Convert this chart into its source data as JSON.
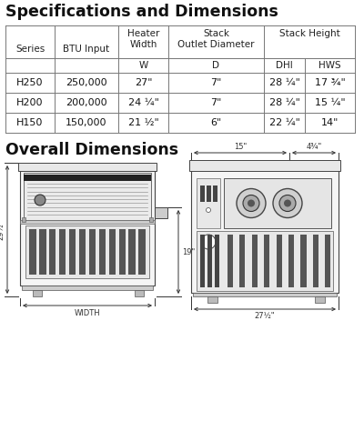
{
  "title1": "Specifications and Dimensions",
  "title2": "Overall Dimensions",
  "bg_color": "#ffffff",
  "table": {
    "rows": [
      [
        "H250",
        "250,000",
        "27\"",
        "7\"",
        "28 ¼\"",
        "17 ¾\""
      ],
      [
        "H200",
        "200,000",
        "24 ¼\"",
        "7\"",
        "28 ¼\"",
        "15 ¼\""
      ],
      [
        "H150",
        "150,000",
        "21 ½\"",
        "6\"",
        "22 ¼\"",
        "14\""
      ]
    ]
  },
  "dim_label_29": "29½\"",
  "dim_label_19": "19\"",
  "dim_label_width": "WIDTH",
  "dim_label_15": "15\"",
  "dim_label_4_3_4": "4¾\"",
  "dim_label_27_1_2": "27½\""
}
